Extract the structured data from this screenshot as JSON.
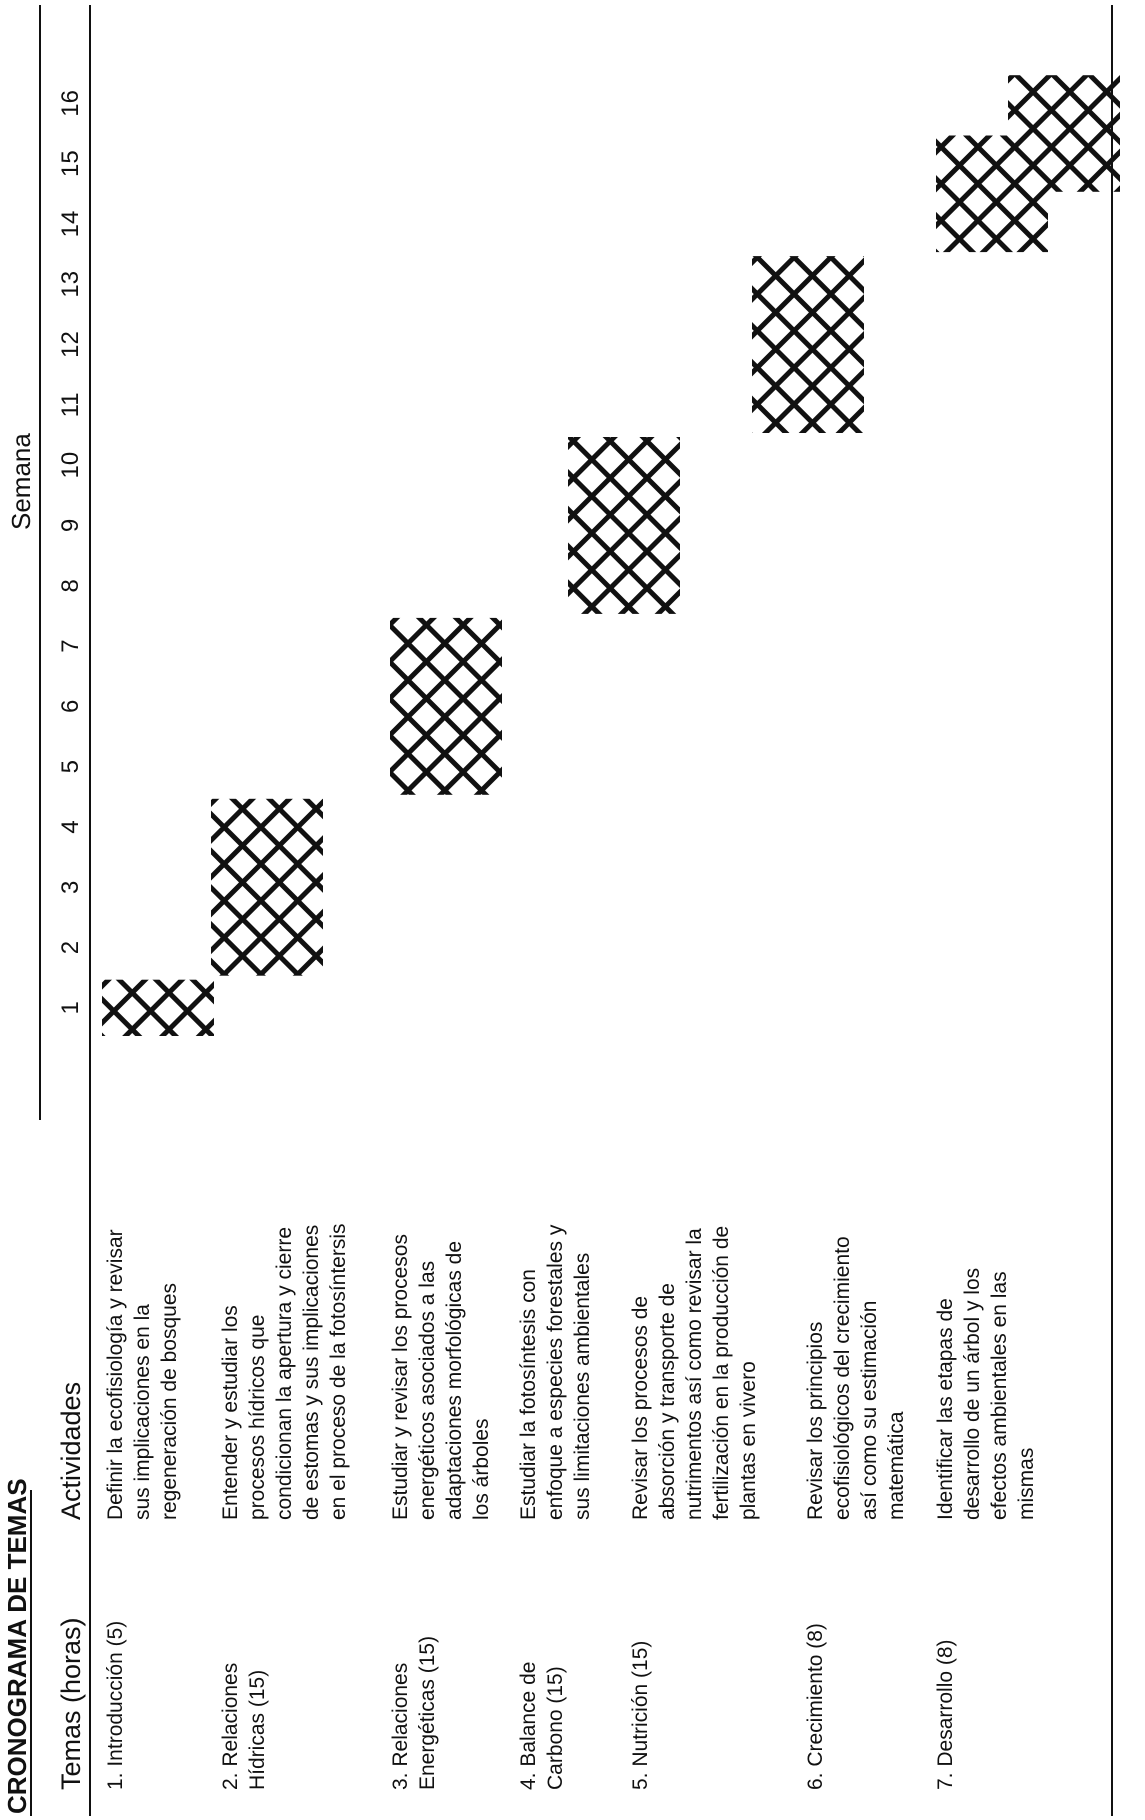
{
  "title": "CRONOGRAMA DE TEMAS",
  "headers": {
    "temas": "Temas (horas)",
    "actividades": "Actividades",
    "semana": "Semana"
  },
  "weeks": [
    "1",
    "2",
    "3",
    "4",
    "5",
    "6",
    "7",
    "8",
    "9",
    "10",
    "11",
    "12",
    "13",
    "14",
    "15",
    "16"
  ],
  "topics": [
    {
      "tema": [
        "1. Introducción (5)"
      ],
      "actividad": [
        "Definir la ecofisiología y revisar",
        "sus implicaciones en la",
        "regeneración de bosques"
      ],
      "weeks": [
        1,
        1
      ]
    },
    {
      "tema": [
        "2. Relaciones",
        "Hídricas (15)"
      ],
      "actividad": [
        "Entender y estudiar los",
        "procesos hídricos que",
        "condicionan la apertura y cierre",
        "de estomas y sus implicaciones",
        "en el proceso de la fotosíntersis"
      ],
      "weeks": [
        2,
        4
      ]
    },
    {
      "tema": [
        "3. Relaciones",
        "Energéticas (15)"
      ],
      "actividad": [
        "Estudiar y revisar los procesos",
        "energéticos asociados a las",
        "adaptaciones morfológicas de",
        "los árboles"
      ],
      "weeks": [
        5,
        7
      ]
    },
    {
      "tema": [
        "4. Balance de",
        "Carbono (15)"
      ],
      "actividad": [
        "Estudiar la fotosíntesis con",
        "enfoque a especies forestales y",
        "sus limitaciones ambientales"
      ],
      "weeks": [
        8,
        10
      ]
    },
    {
      "tema": [
        "5. Nutrición (15)"
      ],
      "actividad": [
        "Revisar los procesos de",
        "absorción y transporte de",
        "nutrimentos así como revisar la",
        "fertilización en la producción de",
        "plantas en vivero"
      ],
      "weeks": [
        11,
        13
      ]
    },
    {
      "tema": [
        "6. Crecimiento (8)"
      ],
      "actividad": [
        "Revisar los principios",
        "ecofisiológicos del crecimiento",
        "así como su estimación",
        "matemática"
      ],
      "weeks": [
        14,
        15
      ]
    },
    {
      "tema": [
        "7. Desarrollo (8)"
      ],
      "actividad": [
        "Identificar las etapas de",
        "desarrollo de un árbol y los",
        "efectos ambientales en las",
        "mismas"
      ],
      "weeks": [
        15,
        16
      ]
    }
  ],
  "colors": {
    "ink": "#111111",
    "paper": "#ffffff"
  }
}
